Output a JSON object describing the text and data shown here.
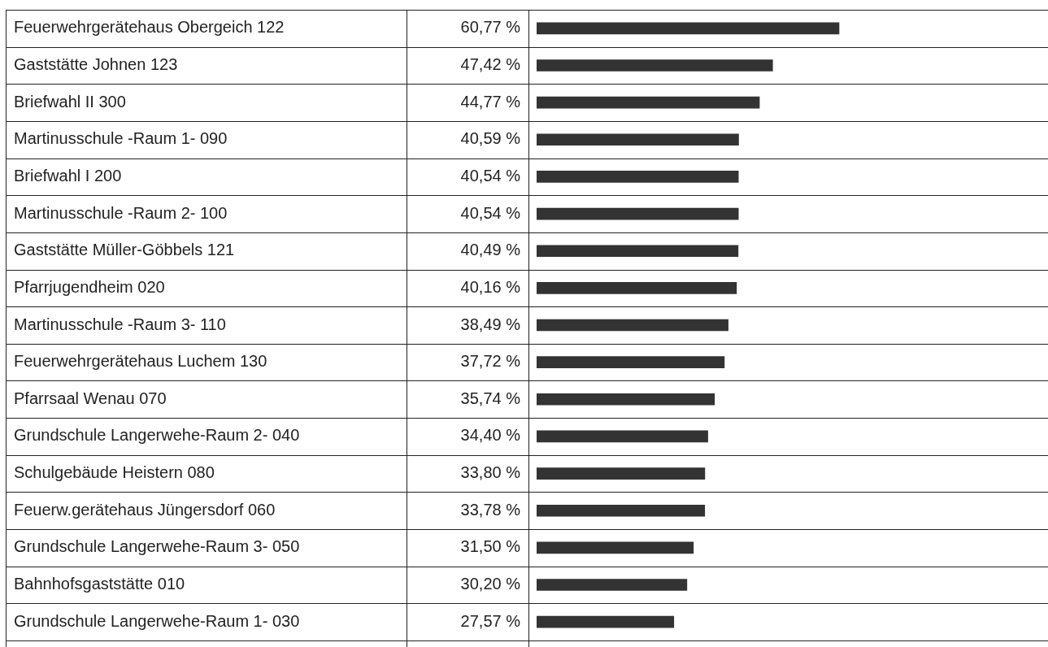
{
  "chart_data": {
    "type": "bar",
    "orientation": "horizontal",
    "categories": [
      "Feuerwehrgerätehaus Obergeich 122",
      "Gaststätte Johnen 123",
      "Briefwahl II 300",
      "Martinusschule -Raum 1- 090",
      "Briefwahl I 200",
      "Martinusschule -Raum 2- 100",
      "Gaststätte Müller-Göbbels 121",
      "Pfarrjugendheim 020",
      "Martinusschule -Raum 3- 110",
      "Feuerwehrgerätehaus Luchem 130",
      "Pfarrsaal Wenau 070",
      "Grundschule Langerwehe-Raum 2- 040",
      "Schulgebäude Heistern 080",
      "Feuerw.gerätehaus Jüngersdorf 060",
      "Grundschule Langerwehe-Raum 3- 050",
      "Bahnhofsgaststätte 010",
      "Grundschule Langerwehe-Raum 1- 030"
    ],
    "values": [
      60.77,
      47.42,
      44.77,
      40.59,
      40.54,
      40.54,
      40.49,
      40.16,
      38.49,
      37.72,
      35.74,
      34.4,
      33.8,
      33.78,
      31.5,
      30.2,
      27.57
    ],
    "value_labels": [
      "60,77 %",
      "47,42 %",
      "44,77 %",
      "40,59 %",
      "40,54 %",
      "40,54 %",
      "40,49 %",
      "40,16 %",
      "38,49 %",
      "37,72 %",
      "35,74 %",
      "34,40 %",
      "33,80 %",
      "33,78 %",
      "31,50 %",
      "30,20 %",
      "27,57 %"
    ],
    "color": "#333333",
    "tick_labels": "y",
    "legend": false
  }
}
